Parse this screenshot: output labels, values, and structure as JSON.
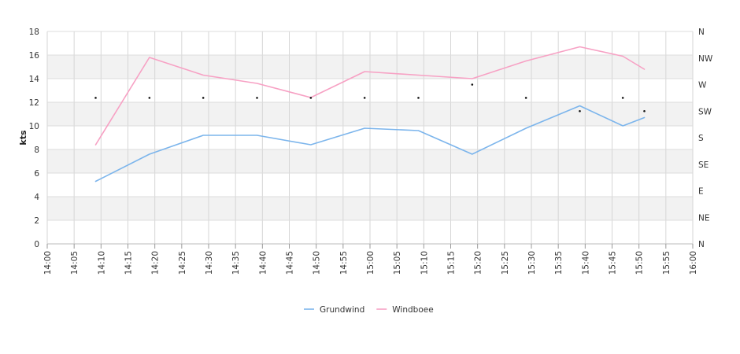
{
  "chart_data": {
    "type": "line",
    "title": "",
    "ylabel": "kts",
    "ylim": [
      0,
      18
    ],
    "yticks": [
      0,
      2,
      4,
      6,
      8,
      10,
      12,
      14,
      16,
      18
    ],
    "x_ticks": [
      "14:00",
      "14:05",
      "14:10",
      "14:15",
      "14:20",
      "14:25",
      "14:30",
      "14:35",
      "14:40",
      "14:45",
      "14:50",
      "14:55",
      "15:00",
      "15:05",
      "15:10",
      "15:15",
      "15:20",
      "15:25",
      "15:30",
      "15:35",
      "15:40",
      "15:45",
      "15:50",
      "15:55",
      "16:00"
    ],
    "y2_ticks": [
      "N",
      "NE",
      "E",
      "SE",
      "S",
      "SW",
      "W",
      "NW",
      "N"
    ],
    "grid": true,
    "legend_position": "bottom",
    "series": [
      {
        "name": "Grundwind",
        "color": "#7cb5ec",
        "x": [
          "14:09",
          "14:19",
          "14:29",
          "14:39",
          "14:49",
          "14:59",
          "15:09",
          "15:19",
          "15:29",
          "15:39",
          "15:47",
          "15:51"
        ],
        "values": [
          5.3,
          7.6,
          9.2,
          9.2,
          8.4,
          9.8,
          9.6,
          7.6,
          9.8,
          11.7,
          10.0,
          10.7
        ]
      },
      {
        "name": "Windboee",
        "color": "#f7a1c4",
        "x": [
          "14:09",
          "14:19",
          "14:29",
          "14:39",
          "14:49",
          "14:59",
          "15:09",
          "15:19",
          "15:29",
          "15:39",
          "15:47",
          "15:51"
        ],
        "values": [
          8.4,
          15.8,
          14.3,
          13.6,
          12.4,
          14.6,
          14.3,
          14.0,
          15.5,
          16.7,
          15.9,
          14.8
        ]
      }
    ],
    "direction_marks": {
      "x": [
        "14:09",
        "14:19",
        "14:29",
        "14:39",
        "14:49",
        "14:59",
        "15:09",
        "15:19",
        "15:29",
        "15:39",
        "15:47",
        "15:51"
      ],
      "values": [
        "SW/W",
        "SW/W",
        "SW/W",
        "SW/W",
        "SW/W",
        "SW/W",
        "SW/W",
        "W",
        "SW/W",
        "SW",
        "SW/W",
        "SW"
      ]
    }
  }
}
